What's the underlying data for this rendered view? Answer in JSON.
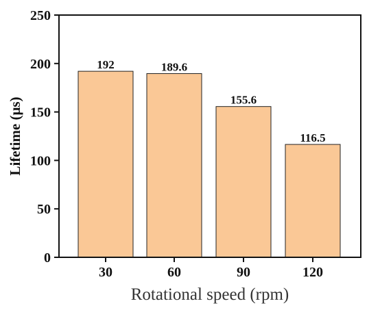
{
  "chart_data": {
    "type": "bar",
    "categories": [
      "30",
      "60",
      "90",
      "120"
    ],
    "values": [
      192,
      189.6,
      155.6,
      116.5
    ],
    "data_labels": [
      "192",
      "189.6",
      "155.6",
      "116.5"
    ],
    "xlabel": "Rotational speed (rpm)",
    "ylabel": "Lifetime (μs)",
    "ylim": [
      0,
      250
    ],
    "yticks": [
      0,
      50,
      100,
      150,
      200,
      250
    ],
    "grid": false,
    "legend": "none",
    "bar_color": "#FAC896",
    "bar_edge_color": "#222222"
  }
}
